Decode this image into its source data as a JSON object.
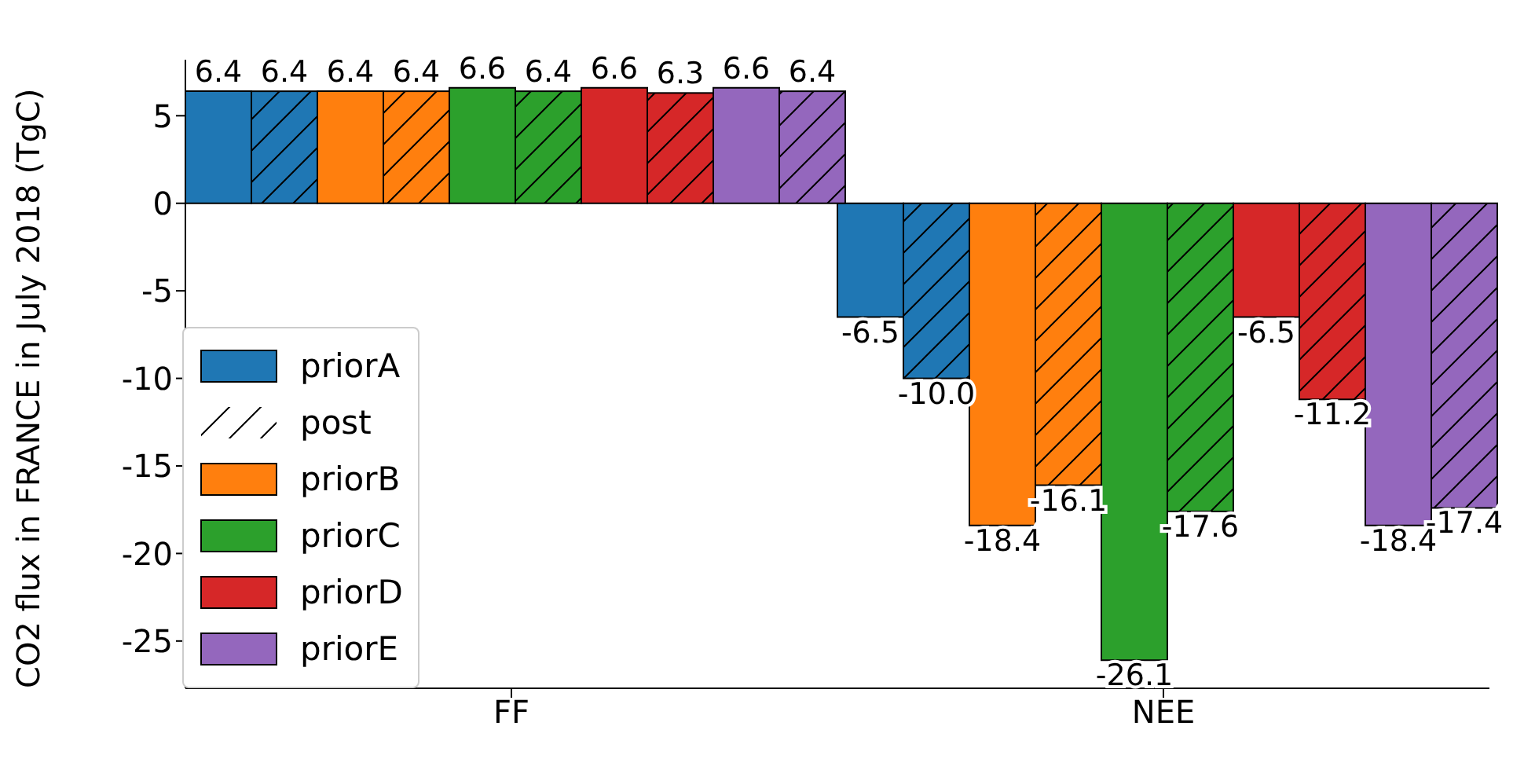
{
  "chart_data": {
    "type": "bar",
    "ylabel": "CO2 flux in FRANCE in July 2018 (TgC)",
    "categories": [
      "FF",
      "NEE"
    ],
    "ylim": [
      -27.7,
      8.2
    ],
    "yticks": [
      -25,
      -20,
      -15,
      -10,
      -5,
      0,
      5
    ],
    "grid": false,
    "legend": "bottom left",
    "annotations": [
      "post"
    ],
    "series": [
      {
        "name": "priorA",
        "color": "#1f77b4",
        "values": [
          6.4,
          -6.5
        ],
        "value_labels": [
          "6.4",
          "-6.5"
        ]
      },
      {
        "color": "#1f77b4",
        "values": [
          6.4,
          -10.0
        ],
        "value_labels": [
          "6.4",
          "-10.0"
        ]
      },
      {
        "name": "priorB",
        "color": "#ff7f0e",
        "values": [
          6.4,
          -18.4
        ],
        "value_labels": [
          "6.4",
          "-18.4"
        ]
      },
      {
        "color": "#ff7f0e",
        "values": [
          6.4,
          -16.1
        ],
        "value_labels": [
          "6.4",
          "-16.1"
        ]
      },
      {
        "name": "priorC",
        "color": "#2ca02c",
        "values": [
          6.6,
          -26.1
        ],
        "value_labels": [
          "6.6",
          "-26.1"
        ]
      },
      {
        "color": "#2ca02c",
        "values": [
          6.4,
          -17.6
        ],
        "value_labels": [
          "6.4",
          "-17.6"
        ]
      },
      {
        "name": "priorD",
        "color": "#d62728",
        "values": [
          6.6,
          -6.5
        ],
        "value_labels": [
          "6.6",
          "-6.5"
        ]
      },
      {
        "color": "#d62728",
        "values": [
          6.3,
          -11.2
        ],
        "value_labels": [
          "6.3",
          "-11.2"
        ]
      },
      {
        "name": "priorE",
        "color": "#9467bd",
        "values": [
          6.6,
          -18.4
        ],
        "value_labels": [
          "6.6",
          "-18.4"
        ]
      },
      {
        "color": "#9467bd",
        "values": [
          6.4,
          -17.4
        ],
        "value_labels": [
          "6.4",
          "-17.4"
        ]
      }
    ]
  }
}
